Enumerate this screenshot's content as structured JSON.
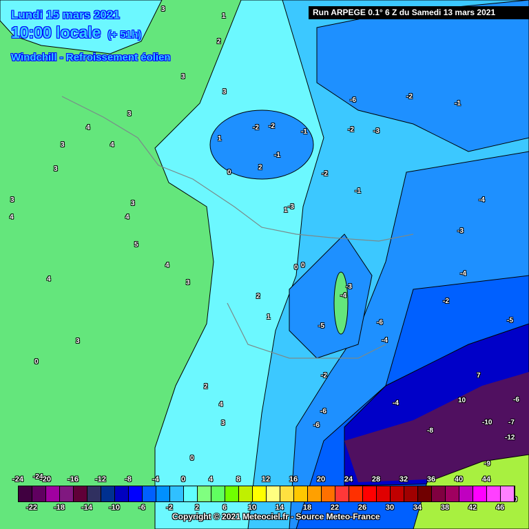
{
  "header": {
    "date": "Lundi 15 mars 2021",
    "time": "10:00 locale",
    "lead": "(+ 51h)",
    "parameter": "Windchill - Refroissement éolien",
    "run": "Run ARPEGE 0.1° 6 Z du Samedi 13 mars 2021"
  },
  "footer": {
    "copyright": "Copyright © 2021 Meteociel.fr - Source Meteo-France"
  },
  "legend": {
    "values": [
      -24,
      -22,
      -20,
      -18,
      -16,
      -14,
      -12,
      -10,
      -8,
      -6,
      -4,
      -2,
      0,
      2,
      4,
      6,
      8,
      10,
      12,
      14,
      16,
      18,
      20,
      22,
      24,
      26,
      28,
      30,
      32,
      34,
      36,
      38,
      40,
      42,
      44,
      46
    ],
    "labels_top": [
      "-24",
      "-20",
      "-16",
      "-12",
      "-8",
      "-4",
      "0",
      "4",
      "8",
      "12",
      "16",
      "20",
      "24",
      "28",
      "32",
      "36",
      "40",
      "44"
    ],
    "labels_bottom": [
      "-22",
      "-18",
      "-14",
      "-10",
      "-6",
      "-2",
      "2",
      "6",
      "10",
      "14",
      "18",
      "22",
      "26",
      "30",
      "34",
      "38",
      "42",
      "46"
    ],
    "colors": [
      "#400040",
      "#600060",
      "#a000a0",
      "#801880",
      "#600038",
      "#303060",
      "#003090",
      "#0000c0",
      "#0000ff",
      "#0060ff",
      "#0090ff",
      "#30c0ff",
      "#60ffff",
      "#80ff80",
      "#60ff60",
      "#70ff00",
      "#c0f000",
      "#ffff00",
      "#ffff80",
      "#ffe040",
      "#ffc800",
      "#ffa000",
      "#ff7000",
      "#ff3838",
      "#ff3000",
      "#ff0000",
      "#e00000",
      "#c00000",
      "#a00000",
      "#700000",
      "#800040",
      "#a00060",
      "#c000c0",
      "#ff00ff",
      "#ff40ff",
      "#ff80ff"
    ]
  },
  "map": {
    "fill_colors": {
      "green": "#64e67c",
      "cyan": "#6cf8ff",
      "light_blue": "#3cc8ff",
      "blue": "#1e90ff",
      "deep_blue": "#0060ff",
      "navy": "#0000c8",
      "purple": "#501060",
      "yellow_green": "#a8f040"
    },
    "contour_labels": [
      "3",
      "1",
      "2",
      "3",
      "3",
      "3",
      "4",
      "3",
      "3",
      "4",
      "3",
      "3",
      "4",
      "4",
      "5",
      "4",
      "4",
      "3",
      "3",
      "0",
      "-3",
      "-2",
      "-2",
      "-1",
      "-1",
      "0",
      "1",
      "2",
      "1",
      "0",
      "-2",
      "-1",
      "-2",
      "-3",
      "-6",
      "-2",
      "-1",
      "-4",
      "-3",
      "-4",
      "-2",
      "-4",
      "-3",
      "-5",
      "-6",
      "-4",
      "-5",
      "-6",
      "-7",
      "-10",
      "-12",
      "-9",
      "-8",
      "-6",
      "0",
      "2",
      "1",
      "4",
      "3",
      "2",
      "0",
      "-2",
      "-4",
      "-6",
      "10",
      "7",
      "10",
      "-24"
    ]
  }
}
